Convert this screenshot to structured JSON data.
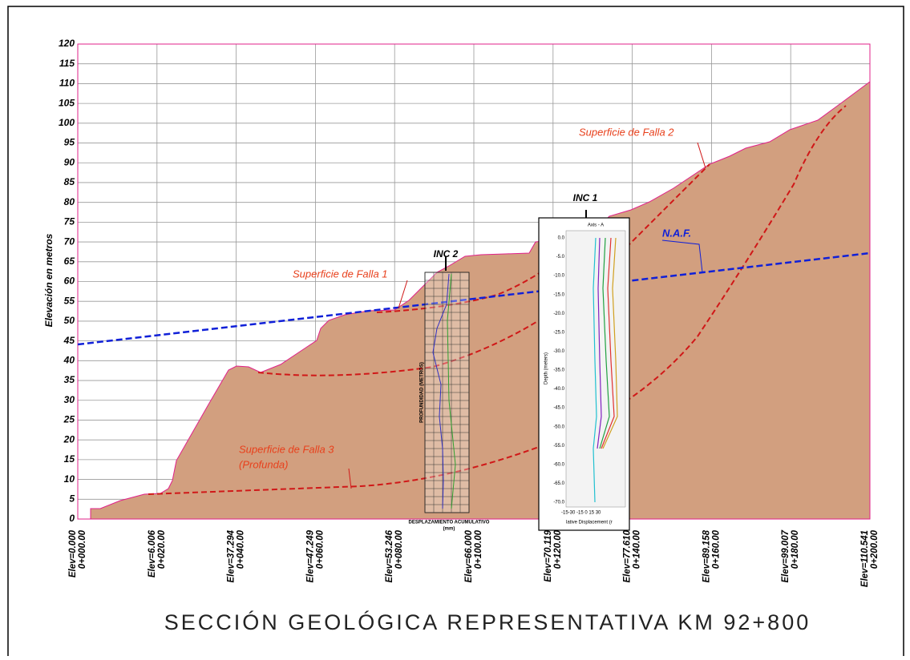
{
  "title": "SECCIÓN GEOLÓGICA REPRESENTATIVA KM 92+800",
  "y_axis": {
    "label": "Elevación en metros",
    "ticks": [
      "0",
      "5",
      "10",
      "15",
      "20",
      "25",
      "30",
      "35",
      "40",
      "45",
      "50",
      "55",
      "60",
      "65",
      "70",
      "75",
      "80",
      "85",
      "90",
      "95",
      "100",
      "105",
      "110",
      "115",
      "120"
    ]
  },
  "stations": [
    {
      "elev": "Elev=0.000",
      "station": "0+000.00"
    },
    {
      "elev": "Elev=6.006",
      "station": "0+020.00"
    },
    {
      "elev": "Elev=37.294",
      "station": "0+040.00"
    },
    {
      "elev": "Elev=47.249",
      "station": "0+060.00"
    },
    {
      "elev": "Elev=53.246",
      "station": "0+080.00"
    },
    {
      "elev": "Elev=66.000",
      "station": "0+100.00"
    },
    {
      "elev": "Elev=70.119",
      "station": "0+120.00"
    },
    {
      "elev": "Elev=77.610",
      "station": "0+140.00"
    },
    {
      "elev": "Elev=89.158",
      "station": "0+160.00"
    },
    {
      "elev": "Elev=99.007",
      "station": "0+180.00"
    },
    {
      "elev": "Elev=110.541",
      "station": "0+200.00"
    }
  ],
  "annotations": {
    "falla1": "Superficie de Falla 1",
    "falla2": "Superficie de Falla 2",
    "falla3": "Superficie de Falla 3",
    "falla3_note": "(Profunda)",
    "naf": "N.A.F."
  },
  "inc1": {
    "label": "INC 1",
    "axis": "Axis - A",
    "ylabel": "Depth (meters)",
    "yticks": [
      "0.0",
      "-5.0",
      "-10.0",
      "-15.0",
      "-20.0",
      "-25.0",
      "-30.0",
      "-35.0",
      "-40.0",
      "-45.0",
      "-50.0",
      "-55.0",
      "-60.0",
      "-65.0",
      "-70.0"
    ],
    "xticks": "-15-30 -15  0  15  30",
    "xlabel": "lative Displacement (r"
  },
  "inc2": {
    "label": "INC 2",
    "ylabel": "PROFUNDIDAD (METROS)",
    "xlabel": "DESPLAZAMIENTO ACUMULATIVO",
    "unit": "(mm)"
  }
}
